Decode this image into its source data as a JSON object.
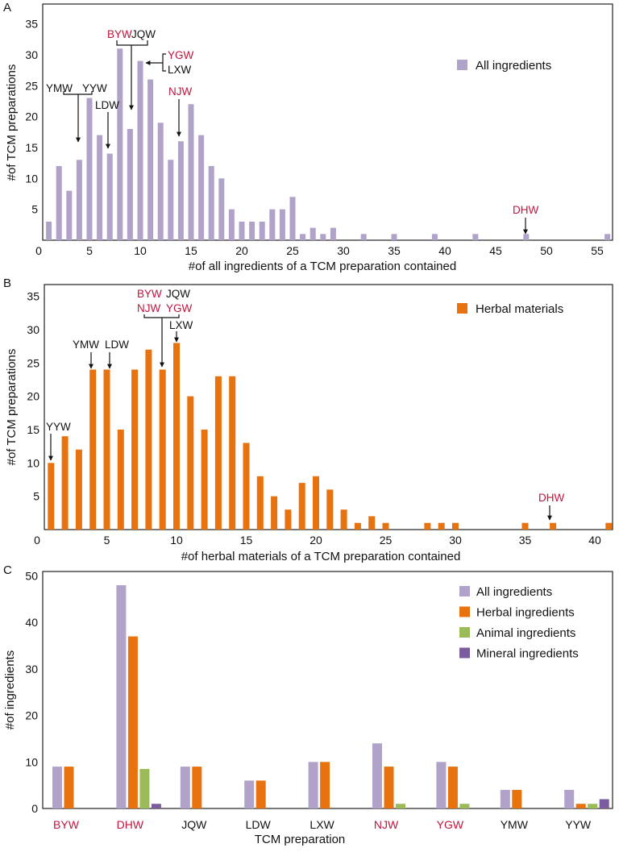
{
  "chart_data": [
    {
      "panel": "A",
      "type": "bar",
      "xlabel": "#of all ingredients of a TCM preparation contained",
      "ylabel": "#of TCM preparations",
      "xlim": [
        0,
        56
      ],
      "ylim": [
        0,
        37
      ],
      "x_ticks": [
        "0",
        "5",
        "10",
        "15",
        "20",
        "25",
        "30",
        "35",
        "40",
        "45",
        "50",
        "55"
      ],
      "y_ticks": [
        "5",
        "10",
        "15",
        "20",
        "25",
        "30",
        "35"
      ],
      "legend": {
        "position": "top-right",
        "entries": [
          "All ingredients"
        ]
      },
      "series": [
        {
          "name": "All ingredients",
          "color": "#b0a2c9",
          "x": [
            1,
            2,
            3,
            4,
            5,
            6,
            7,
            8,
            9,
            10,
            11,
            12,
            13,
            14,
            15,
            16,
            17,
            18,
            19,
            20,
            21,
            22,
            23,
            24,
            25,
            26,
            27,
            28,
            29,
            32,
            35,
            39,
            43,
            48,
            56
          ],
          "values": [
            3,
            12,
            8,
            13,
            23,
            17,
            14,
            31,
            18,
            29,
            26,
            19,
            13,
            16,
            22,
            17,
            12,
            10,
            5,
            3,
            3,
            3,
            5,
            5,
            7,
            1,
            2,
            1,
            2,
            1,
            1,
            1,
            1,
            1,
            1
          ]
        }
      ],
      "annotations": [
        {
          "label": "BYW",
          "color": "#c0143c"
        },
        {
          "label": "JQW",
          "color": "#111111"
        },
        {
          "label": "YGW",
          "color": "#c0143c"
        },
        {
          "label": "LXW",
          "color": "#111111"
        },
        {
          "label": "YMW",
          "color": "#111111"
        },
        {
          "label": "YYW",
          "color": "#111111"
        },
        {
          "label": "LDW",
          "color": "#111111"
        },
        {
          "label": "NJW",
          "color": "#c0143c"
        },
        {
          "label": "DHW",
          "color": "#c0143c"
        }
      ]
    },
    {
      "panel": "B",
      "type": "bar",
      "xlabel": "#of herbal materials of a TCM preparation contained",
      "ylabel": "#of TCM preparations",
      "xlim": [
        0,
        41
      ],
      "ylim": [
        0,
        37
      ],
      "x_ticks": [
        "0",
        "5",
        "10",
        "15",
        "20",
        "25",
        "30",
        "35",
        "40"
      ],
      "y_ticks": [
        "5",
        "10",
        "15",
        "20",
        "25",
        "30",
        "35"
      ],
      "legend": {
        "position": "top-right",
        "entries": [
          "Herbal materials"
        ]
      },
      "series": [
        {
          "name": "Herbal materials",
          "color": "#e8720e",
          "x": [
            1,
            2,
            3,
            4,
            5,
            6,
            7,
            8,
            9,
            10,
            11,
            12,
            13,
            14,
            15,
            16,
            17,
            18,
            19,
            20,
            21,
            22,
            23,
            24,
            25,
            28,
            29,
            30,
            35,
            37,
            41
          ],
          "values": [
            10,
            14,
            12,
            24,
            24,
            15,
            24,
            27,
            24,
            28,
            20,
            15,
            23,
            23,
            13,
            8,
            5,
            3,
            7,
            8,
            6,
            3,
            1,
            2,
            1,
            1,
            1,
            1,
            1,
            1,
            1
          ]
        }
      ],
      "annotations": [
        {
          "label": "BYW",
          "color": "#c0143c"
        },
        {
          "label": "JQW",
          "color": "#111111"
        },
        {
          "label": "NJW",
          "color": "#c0143c"
        },
        {
          "label": "YGW",
          "color": "#c0143c"
        },
        {
          "label": "LXW",
          "color": "#111111"
        },
        {
          "label": "YMW",
          "color": "#111111"
        },
        {
          "label": "LDW",
          "color": "#111111"
        },
        {
          "label": "YYW",
          "color": "#111111"
        },
        {
          "label": "DHW",
          "color": "#c0143c"
        }
      ]
    },
    {
      "panel": "C",
      "type": "bar",
      "xlabel": "TCM preparation",
      "ylabel": "#of ingredients",
      "ylim": [
        0,
        50
      ],
      "y_ticks": [
        "0",
        "10",
        "20",
        "30",
        "40",
        "50"
      ],
      "categories": [
        "BYW",
        "DHW",
        "JQW",
        "LDW",
        "LXW",
        "NJW",
        "YGW",
        "YMW",
        "YYW"
      ],
      "category_colors": [
        "#c0143c",
        "#c0143c",
        "#111111",
        "#111111",
        "#111111",
        "#c0143c",
        "#c0143c",
        "#111111",
        "#111111"
      ],
      "legend": {
        "position": "top-right",
        "entries": [
          "All ingredients",
          "Herbal ingredients",
          "Animal ingredients",
          "Mineral ingredients"
        ]
      },
      "series": [
        {
          "name": "All ingredients",
          "color": "#b0a2c9",
          "values": [
            9,
            48,
            9,
            6,
            10,
            14,
            10,
            4,
            4
          ]
        },
        {
          "name": "Herbal ingredients",
          "color": "#e8720e",
          "values": [
            9,
            37,
            9,
            6,
            10,
            9,
            9,
            4,
            1
          ]
        },
        {
          "name": "Animal ingredients",
          "color": "#9bbb59",
          "values": [
            0,
            8.5,
            0,
            0,
            0,
            1,
            1,
            0,
            1
          ]
        },
        {
          "name": "Mineral ingredients",
          "color": "#7b5c9e",
          "values": [
            0,
            1,
            0,
            0,
            0,
            0,
            0,
            0,
            2
          ]
        }
      ]
    }
  ]
}
